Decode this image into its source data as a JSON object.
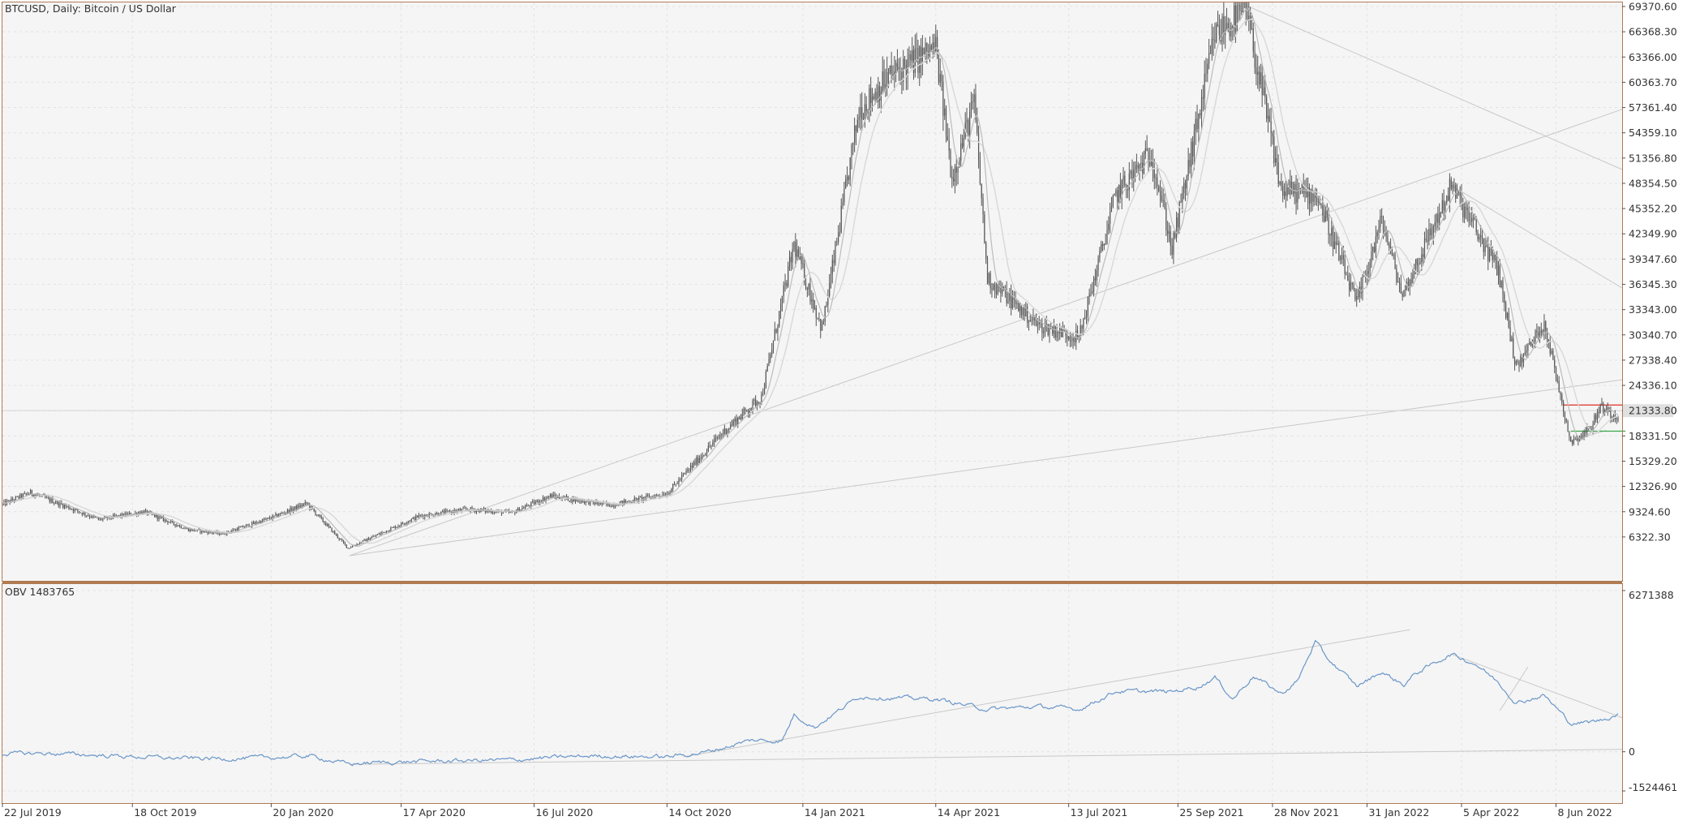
{
  "chart_data": [
    {
      "type": "candlestick",
      "title": "BTCUSD, Daily:  Bitcoin / US Dollar",
      "symbol": "BTCUSD",
      "timeframe": "Daily",
      "instrument_name": "Bitcoin / US Dollar",
      "x_range": [
        "2019-07-22",
        "2022-07-20"
      ],
      "ylim": [
        4000,
        69370.6
      ],
      "y_ticks": [
        "69370.60",
        "66368.30",
        "63366.00",
        "60363.70",
        "57361.40",
        "54359.10",
        "51356.80",
        "48354.50",
        "45352.20",
        "42349.90",
        "39347.60",
        "36345.30",
        "33343.00",
        "30340.70",
        "27338.40",
        "24336.10",
        "21333.80",
        "18331.50",
        "15329.20",
        "12326.90",
        "9324.60",
        "6322.30"
      ],
      "current_price_label": "21333.80",
      "price_path": [
        [
          "2019-07-22",
          10200
        ],
        [
          "2019-08-10",
          11600
        ],
        [
          "2019-09-01",
          10100
        ],
        [
          "2019-09-25",
          8400
        ],
        [
          "2019-10-26",
          9300
        ],
        [
          "2019-11-25",
          7200
        ],
        [
          "2019-12-18",
          6700
        ],
        [
          "2020-01-20",
          8600
        ],
        [
          "2020-02-13",
          10300
        ],
        [
          "2020-03-12",
          5000
        ],
        [
          "2020-04-29",
          8800
        ],
        [
          "2020-06-01",
          9600
        ],
        [
          "2020-07-01",
          9200
        ],
        [
          "2020-07-27",
          11200
        ],
        [
          "2020-09-05",
          10100
        ],
        [
          "2020-10-14",
          11500
        ],
        [
          "2020-11-20",
          18600
        ],
        [
          "2020-12-17",
          23000
        ],
        [
          "2021-01-08",
          41000
        ],
        [
          "2021-01-27",
          31000
        ],
        [
          "2021-02-21",
          57000
        ],
        [
          "2021-03-13",
          61000
        ],
        [
          "2021-04-14",
          64500
        ],
        [
          "2021-04-25",
          49000
        ],
        [
          "2021-05-10",
          58000
        ],
        [
          "2021-05-19",
          37000
        ],
        [
          "2021-06-22",
          31500
        ],
        [
          "2021-07-20",
          30000
        ],
        [
          "2021-08-14",
          47000
        ],
        [
          "2021-09-07",
          52000
        ],
        [
          "2021-09-21",
          40500
        ],
        [
          "2021-10-20",
          66000
        ],
        [
          "2021-11-10",
          68900
        ],
        [
          "2021-12-04",
          47500
        ],
        [
          "2021-12-28",
          47000
        ],
        [
          "2022-01-24",
          34000
        ],
        [
          "2022-02-10",
          44000
        ],
        [
          "2022-02-24",
          35000
        ],
        [
          "2022-03-29",
          48000
        ],
        [
          "2022-04-30",
          38000
        ],
        [
          "2022-05-12",
          26500
        ],
        [
          "2022-05-31",
          31800
        ],
        [
          "2022-06-18",
          17600
        ],
        [
          "2022-07-01",
          19200
        ],
        [
          "2022-07-08",
          21800
        ],
        [
          "2022-07-20",
          20500
        ]
      ],
      "indicators": [
        "moving average (fast)",
        "moving average (slow)"
      ],
      "horizontal_levels": [
        {
          "price": 22000,
          "color": "#e0403a",
          "from": "2022-06-13",
          "to": "2022-07-25"
        },
        {
          "price": 18900,
          "color": "#3aa64a",
          "from": "2022-06-18",
          "to": "2022-07-25"
        }
      ],
      "trendlines": [
        {
          "from": [
            "2020-03-13",
            4100
          ],
          "to": [
            "2022-09-20",
            60800
          ]
        },
        {
          "from": [
            "2020-03-13",
            4100
          ],
          "to": [
            "2024-06-10",
            41700
          ]
        },
        {
          "from": [
            "2021-11-10",
            69500
          ],
          "to": [
            "2023-11-05",
            14000
          ]
        },
        {
          "from": [
            "2022-03-29",
            48100
          ],
          "to": [
            "2023-04-25",
            6800
          ]
        },
        {
          "from": [
            "2022-06-18",
            17700
          ],
          "to": [
            "2022-07-12",
            19000
          ]
        }
      ],
      "grid": true,
      "colors": {
        "candles": "#555555",
        "ma_fast": "#bcbcbc",
        "ma_slow": "#d8d8d8",
        "trendline": "#c8c8c8",
        "axis": "#b07a52",
        "background": "#f5f5f5"
      }
    },
    {
      "type": "line",
      "title": "OBV 1483765",
      "indicator": "OBV",
      "value_label": "1483765",
      "ylim": [
        -1524461,
        6271388
      ],
      "y_ticks": [
        "6271388",
        "0",
        "-1524461"
      ],
      "series": [
        {
          "color": "#6a96c8",
          "points": [
            [
              "2019-07-22",
              -80000
            ],
            [
              "2019-08-20",
              -60000
            ],
            [
              "2019-10-01",
              -150000
            ],
            [
              "2019-11-15",
              -250000
            ],
            [
              "2019-12-20",
              -270000
            ],
            [
              "2020-01-20",
              -230000
            ],
            [
              "2020-02-15",
              -160000
            ],
            [
              "2020-03-12",
              -480000
            ],
            [
              "2020-04-01",
              -420000
            ],
            [
              "2020-05-15",
              -360000
            ],
            [
              "2020-07-01",
              -320000
            ],
            [
              "2020-07-27",
              -230000
            ],
            [
              "2020-08-25",
              -160000
            ],
            [
              "2020-10-14",
              -200000
            ],
            [
              "2020-11-10",
              -10000
            ],
            [
              "2020-12-10",
              450000
            ],
            [
              "2020-12-31",
              420000
            ],
            [
              "2021-01-08",
              1450000
            ],
            [
              "2021-01-22",
              950000
            ],
            [
              "2021-02-21",
              2150000
            ],
            [
              "2021-03-13",
              2100000
            ],
            [
              "2021-04-14",
              2050000
            ],
            [
              "2021-05-19",
              1650000
            ],
            [
              "2021-06-22",
              1760000
            ],
            [
              "2021-07-20",
              1650000
            ],
            [
              "2021-08-14",
              2350000
            ],
            [
              "2021-09-21",
              2340000
            ],
            [
              "2021-10-10",
              2550000
            ],
            [
              "2021-10-20",
              2900000
            ],
            [
              "2021-11-01",
              2050000
            ],
            [
              "2021-11-15",
              2950000
            ],
            [
              "2021-12-04",
              2250000
            ],
            [
              "2021-12-15",
              2750000
            ],
            [
              "2021-12-27",
              4300000
            ],
            [
              "2022-01-03",
              3700000
            ],
            [
              "2022-01-24",
              2550000
            ],
            [
              "2022-02-10",
              3100000
            ],
            [
              "2022-02-25",
              2600000
            ],
            [
              "2022-03-05",
              3050000
            ],
            [
              "2022-03-29",
              3800000
            ],
            [
              "2022-04-15",
              3400000
            ],
            [
              "2022-04-30",
              2700000
            ],
            [
              "2022-05-12",
              1900000
            ],
            [
              "2022-05-31",
              2200000
            ],
            [
              "2022-06-18",
              1100000
            ],
            [
              "2022-07-01",
              1150000
            ],
            [
              "2022-07-10",
              1250000
            ],
            [
              "2022-07-20",
              1480000
            ]
          ]
        }
      ],
      "trendlines": [
        {
          "from": [
            "2020-03-13",
            -490000
          ],
          "to": [
            "2023-02-10",
            230000
          ]
        },
        {
          "from": [
            "2020-10-25",
            -200000
          ],
          "to": [
            "2022-03-01",
            4750000
          ]
        },
        {
          "from": [
            "2022-03-29",
            3800000
          ],
          "to": [
            "2022-09-05",
            380000
          ]
        },
        {
          "from": [
            "2022-05-01",
            1600000
          ],
          "to": [
            "2022-05-20",
            3300000
          ]
        }
      ],
      "grid": true
    }
  ],
  "x_axis": {
    "tick_labels": [
      {
        "date": "2019-07-22",
        "label": "22 Jul 2019"
      },
      {
        "date": "2019-10-18",
        "label": "18 Oct 2019"
      },
      {
        "date": "2020-01-20",
        "label": "20 Jan 2020"
      },
      {
        "date": "2020-04-17",
        "label": "17 Apr 2020"
      },
      {
        "date": "2020-07-16",
        "label": "16 Jul 2020"
      },
      {
        "date": "2020-10-14",
        "label": "14 Oct 2020"
      },
      {
        "date": "2021-01-14",
        "label": "14 Jan 2021"
      },
      {
        "date": "2021-04-14",
        "label": "14 Apr 2021"
      },
      {
        "date": "2021-07-13",
        "label": "13 Jul 2021"
      },
      {
        "date": "2021-09-25",
        "label": "25 Sep 2021"
      },
      {
        "date": "2021-11-28",
        "label": "28 Nov 2021"
      },
      {
        "date": "2022-01-31",
        "label": "31 Jan 2022"
      },
      {
        "date": "2022-04-05",
        "label": "5 Apr 2022"
      },
      {
        "date": "2022-06-08",
        "label": "8 Jun 2022"
      }
    ]
  }
}
